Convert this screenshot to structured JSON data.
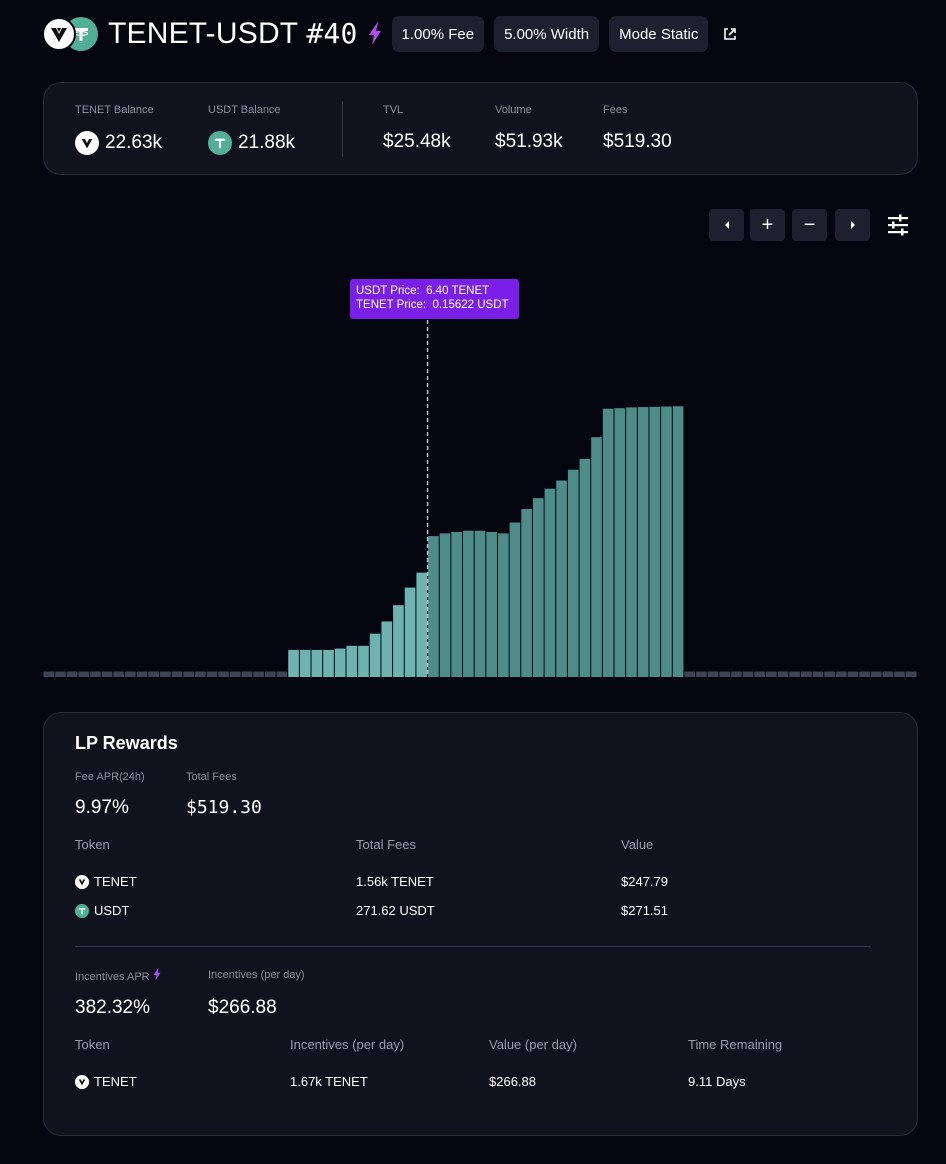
{
  "header": {
    "pair_name": "TENET-USDT",
    "position_number": "#40",
    "fee_chip": "1.00% Fee",
    "width_chip": "5.00% Width",
    "mode_chip": "Mode Static",
    "icons": [
      "tenet-token-icon",
      "usdt-token-icon",
      "lightning-icon",
      "external-link-icon"
    ]
  },
  "stats": {
    "tenet_balance_label": "TENET Balance",
    "tenet_balance_value": "22.63k",
    "usdt_balance_label": "USDT Balance",
    "usdt_balance_value": "21.88k",
    "tvl_label": "TVL",
    "tvl_value": "$25.48k",
    "volume_label": "Volume",
    "volume_value": "$51.93k",
    "fees_label": "Fees",
    "fees_value": "$519.30"
  },
  "chart_controls": {
    "icons": [
      "chevron-left-icon",
      "plus-icon",
      "minus-icon",
      "chevron-right-icon",
      "sliders-icon"
    ],
    "plus": "+",
    "minus": "−"
  },
  "chart_tooltip": {
    "line1": "USDT Price:  6.40 TENET",
    "line2": "TENET Price:  0.15622 USDT"
  },
  "chart_data": {
    "type": "bar",
    "description_of_values": "relative liquidity depth per price tick",
    "current_price_index": 33,
    "ylim": [
      0,
      100
    ],
    "values": [
      2,
      2,
      2,
      2,
      2,
      2,
      2,
      2,
      2,
      2,
      2,
      2,
      2,
      2,
      2,
      2,
      2,
      2,
      2,
      2,
      2,
      10,
      10,
      10,
      10,
      10.5,
      11.5,
      11.5,
      16,
      20.5,
      26.5,
      33,
      38.5,
      52,
      53,
      53.5,
      54,
      54,
      53.5,
      53,
      57,
      62,
      66,
      69.5,
      72.5,
      76.5,
      80.5,
      88.5,
      99,
      99.2,
      99.5,
      99.6,
      99.7,
      99.8,
      99.9,
      2,
      2,
      2,
      2,
      2,
      2,
      2,
      2,
      2,
      2,
      2,
      2,
      2,
      2,
      2,
      2,
      2,
      2,
      2,
      2
    ],
    "colors": {
      "out_of_range": "#3f4452",
      "left_of_price": "#6fb3b0",
      "right_of_price": "#4e8c89",
      "price_line": "#bfc3cc"
    }
  },
  "lp_rewards": {
    "title": "LP Rewards",
    "fee_apr_label": "Fee APR(24h)",
    "fee_apr_value": "9.97%",
    "total_fees_label": "Total Fees",
    "total_fees_value": "$519.30",
    "fees_table": {
      "headers": [
        "Token",
        "Total Fees",
        "Value"
      ],
      "rows": [
        {
          "token": "TENET",
          "total": "1.56k TENET",
          "value": "$247.79"
        },
        {
          "token": "USDT",
          "total": "271.62 USDT",
          "value": "$271.51"
        }
      ]
    },
    "incentives_apr_label": "Incentives APR",
    "incentives_apr_value": "382.32%",
    "incentives_per_day_label": "Incentives (per day)",
    "incentives_per_day_value": "$266.88",
    "incentives_table": {
      "headers": [
        "Token",
        "Incentives (per day)",
        "Value (per day)",
        "Time Remaining"
      ],
      "rows": [
        {
          "token": "TENET",
          "incentives": "1.67k TENET",
          "value": "$266.88",
          "time": "9.11 Days"
        }
      ]
    }
  },
  "colors": {
    "background": "#05050f",
    "card": "#10121e",
    "chip": "#1e2030",
    "accent_purple": "#7a1fe8",
    "usdt_green": "#50af95"
  }
}
